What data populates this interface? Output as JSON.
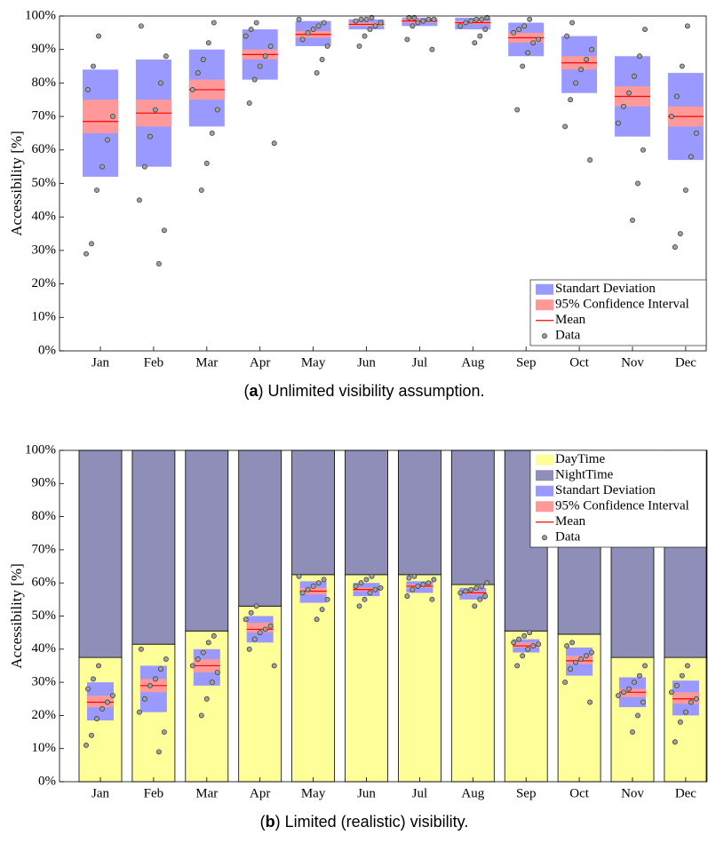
{
  "chart_data": [
    {
      "type": "interval",
      "caption": [
        "(",
        "a",
        ") Unlimited visibility assumption."
      ],
      "ylabel": "Accessibility [%]",
      "categories": [
        "Jan",
        "Feb",
        "Mar",
        "Apr",
        "May",
        "Jun",
        "Jul",
        "Aug",
        "Sep",
        "Oct",
        "Nov",
        "Dec"
      ],
      "ylim": [
        0,
        100
      ],
      "yticks": [
        {
          "value": 0,
          "label": "0%"
        },
        {
          "value": 10,
          "label": "10%"
        },
        {
          "value": 20,
          "label": "20%"
        },
        {
          "value": 30,
          "label": "30%"
        },
        {
          "value": 40,
          "label": "40%"
        },
        {
          "value": 50,
          "label": "50%"
        },
        {
          "value": 60,
          "label": "60%"
        },
        {
          "value": 70,
          "label": "70%"
        },
        {
          "value": 80,
          "label": "80%"
        },
        {
          "value": 90,
          "label": "90%"
        },
        {
          "value": 100,
          "label": "100%"
        }
      ],
      "legend": "lower right",
      "series": [
        {
          "name": "Standart Deviation",
          "color": "#9999ff",
          "mark": "box",
          "low": [
            52,
            55,
            67,
            81,
            91,
            96,
            97,
            96,
            88,
            77,
            64,
            57
          ],
          "high": [
            84,
            87,
            90,
            96,
            98.5,
            99,
            99.5,
            99.5,
            98,
            94,
            88,
            83
          ]
        },
        {
          "name": "95% Confidence Interval",
          "color": "#ff9999",
          "mark": "box",
          "low": [
            65,
            67,
            75,
            87,
            93.5,
            97,
            98,
            97.5,
            92,
            84,
            73,
            67
          ],
          "high": [
            75,
            75,
            81,
            90,
            95.5,
            98,
            99,
            98.5,
            95,
            88,
            79,
            73
          ]
        },
        {
          "name": "Mean",
          "color": "#ff0000",
          "mark": "line",
          "values": [
            68.5,
            71,
            78,
            88.5,
            94.5,
            97.5,
            98.5,
            98,
            93.5,
            86,
            76,
            70
          ]
        },
        {
          "name": "Data",
          "color": "#a0a0a0",
          "mark": "dots",
          "points": [
            [
              29,
              32,
              48,
              55,
              63,
              70,
              78,
              85,
              94
            ],
            [
              26,
              36,
              45,
              55,
              64,
              72,
              80,
              88,
              97
            ],
            [
              48,
              56,
              65,
              72,
              78,
              83,
              87,
              92,
              98
            ],
            [
              62,
              74,
              81,
              85,
              88,
              91,
              94,
              96,
              98
            ],
            [
              83,
              87,
              91,
              93,
              95,
              96,
              97,
              98,
              99
            ],
            [
              91,
              94,
              96,
              97,
              98,
              98.5,
              99,
              99,
              99.5
            ],
            [
              90,
              93,
              97,
              98,
              98.5,
              99,
              99,
              99.5,
              99.5
            ],
            [
              92,
              94,
              96,
              97,
              98,
              98.5,
              99,
              99,
              99.5
            ],
            [
              72,
              85,
              89,
              92,
              93,
              95,
              96,
              97,
              99
            ],
            [
              57,
              67,
              75,
              80,
              84,
              87,
              90,
              94,
              98
            ],
            [
              39,
              50,
              60,
              68,
              73,
              77,
              82,
              88,
              96
            ],
            [
              31,
              35,
              48,
              58,
              65,
              70,
              76,
              85,
              97
            ]
          ]
        }
      ]
    },
    {
      "type": "stacked-bar",
      "caption": [
        "(",
        "b",
        ") Limited (realistic) visibility."
      ],
      "ylabel": "Accessibility [%]",
      "categories": [
        "Jan",
        "Feb",
        "Mar",
        "Apr",
        "May",
        "Jun",
        "Jul",
        "Aug",
        "Sep",
        "Oct",
        "Nov",
        "Dec"
      ],
      "ylim": [
        0,
        100
      ],
      "yticks": [
        {
          "value": 0,
          "label": "0%"
        },
        {
          "value": 10,
          "label": "10%"
        },
        {
          "value": 20,
          "label": "20%"
        },
        {
          "value": 30,
          "label": "30%"
        },
        {
          "value": 40,
          "label": "40%"
        },
        {
          "value": 50,
          "label": "50%"
        },
        {
          "value": 60,
          "label": "60%"
        },
        {
          "value": 70,
          "label": "70%"
        },
        {
          "value": 80,
          "label": "80%"
        },
        {
          "value": 90,
          "label": "90%"
        },
        {
          "value": 100,
          "label": "100%"
        }
      ],
      "legend": "upper right",
      "series": [
        {
          "name": "DayTime",
          "color": "#ffff99",
          "mark": "bar",
          "values": [
            37.5,
            41.5,
            45.5,
            53,
            62.5,
            62.5,
            62.5,
            59.5,
            45.5,
            44.5,
            37.5,
            37.5
          ]
        },
        {
          "name": "NightTime",
          "color": "#8e8eb8",
          "mark": "bar",
          "values": [
            62.5,
            58.5,
            54.5,
            47,
            37.5,
            37.5,
            37.5,
            40.5,
            54.5,
            55.5,
            62.5,
            62.5
          ]
        },
        {
          "name": "Standart Deviation",
          "color": "#9999ff",
          "mark": "box",
          "low": [
            18.5,
            21,
            29,
            42,
            54,
            56,
            57,
            55,
            39,
            32,
            22.5,
            20
          ],
          "high": [
            30,
            35,
            40,
            50,
            60.5,
            60,
            60.5,
            58.5,
            43,
            40.5,
            31.5,
            30.5
          ]
        },
        {
          "name": "95% Confidence Interval",
          "color": "#ff9999",
          "mark": "box",
          "low": [
            22.5,
            27,
            33,
            45,
            56.5,
            57.5,
            58.5,
            56.5,
            40.5,
            35.5,
            25.5,
            23.5
          ],
          "high": [
            26,
            31,
            37,
            48,
            58.5,
            58.5,
            59.5,
            57.5,
            42,
            38,
            28,
            27
          ]
        },
        {
          "name": "Mean",
          "color": "#ff0000",
          "mark": "line",
          "values": [
            24,
            29,
            35,
            46,
            57.5,
            58,
            59,
            57,
            41,
            36.5,
            27,
            25
          ]
        },
        {
          "name": "Data",
          "color": "#a0a0a0",
          "mark": "dots",
          "points": [
            [
              11,
              14,
              19,
              22,
              24,
              26,
              28,
              31,
              35
            ],
            [
              9,
              15,
              21,
              25,
              29,
              31,
              34,
              37,
              40
            ],
            [
              20,
              25,
              30,
              33,
              35,
              37,
              39,
              42,
              44
            ],
            [
              35,
              40,
              43,
              45,
              46,
              47,
              49,
              51,
              53
            ],
            [
              49,
              52,
              55,
              57,
              58,
              59,
              60,
              61,
              62
            ],
            [
              53,
              55,
              57,
              58,
              58.5,
              59,
              60,
              61,
              62
            ],
            [
              55,
              56,
              58,
              59,
              59.5,
              60,
              61,
              61.5,
              62
            ],
            [
              53,
              55,
              56,
              57,
              57.5,
              58,
              58.5,
              59,
              60
            ],
            [
              35,
              38,
              40,
              41,
              41.5,
              42,
              43,
              44,
              45
            ],
            [
              24,
              30,
              34,
              36,
              37,
              38,
              39,
              41,
              42
            ],
            [
              15,
              20,
              24,
              26,
              27,
              28,
              30,
              32,
              35
            ],
            [
              12,
              18,
              21,
              24,
              25,
              27,
              29,
              32,
              35
            ]
          ]
        }
      ]
    }
  ]
}
